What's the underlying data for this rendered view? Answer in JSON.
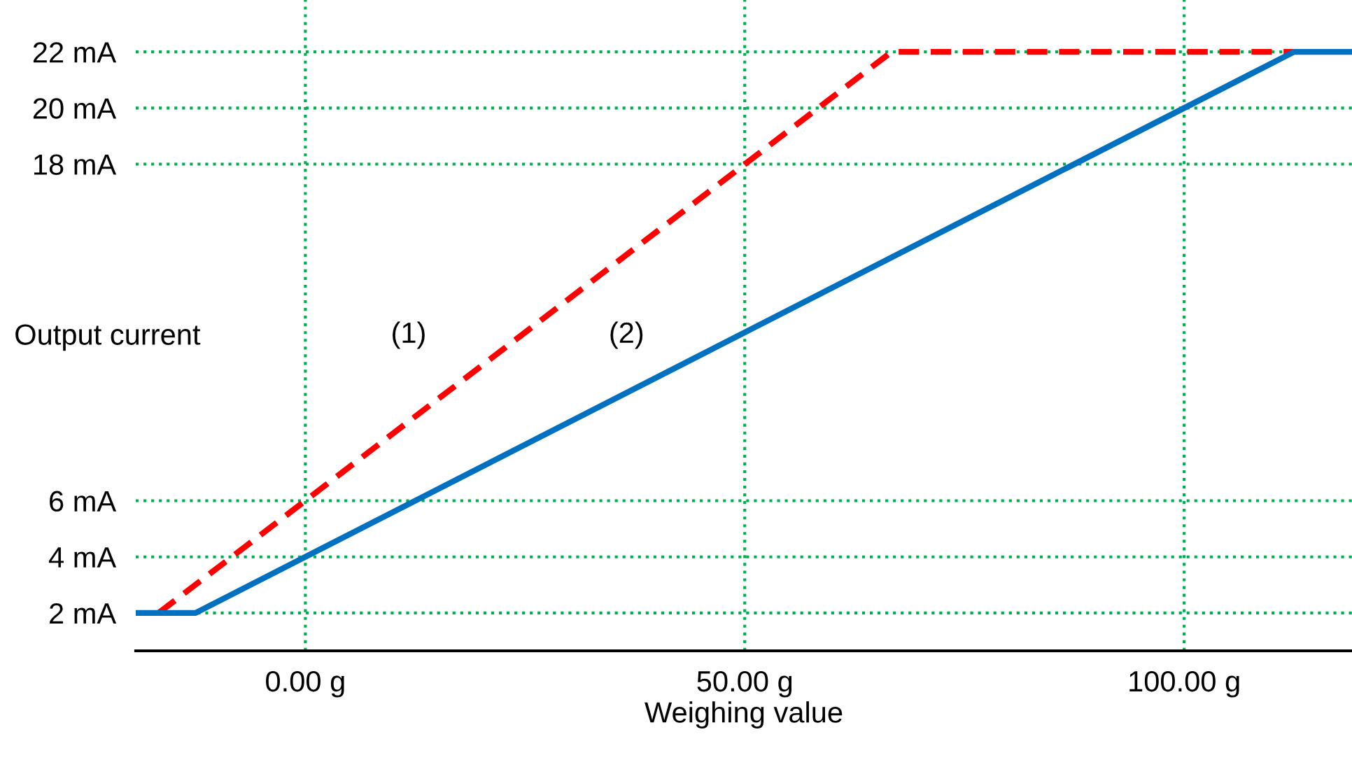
{
  "chart_data": {
    "type": "line",
    "xlabel": "Weighing value",
    "ylabel": "Output current",
    "series": [
      {
        "name": "(1)",
        "color": "#ff0000",
        "line_style": "dashed",
        "x": [
          -16.7,
          66.7,
          112.5
        ],
        "values": [
          2,
          22,
          22
        ]
      },
      {
        "name": "(2)",
        "color": "#0070c0",
        "line_style": "solid",
        "x": [
          -19.3,
          -12.5,
          112.5,
          119.1
        ],
        "values": [
          2,
          2,
          22,
          22
        ]
      }
    ],
    "xlim": [
      -19.3,
      119.1
    ],
    "ylim": [
      0.65,
      23.85
    ],
    "xticks": [
      {
        "value": 0,
        "label": "0.00 g"
      },
      {
        "value": 50,
        "label": "50.00 g"
      },
      {
        "value": 100,
        "label": "100.00 g"
      }
    ],
    "yticks": [
      {
        "value": 2,
        "label": "2 mA"
      },
      {
        "value": 4,
        "label": "4 mA"
      },
      {
        "value": 6,
        "label": "6 mA"
      },
      {
        "value": 18,
        "label": "18 mA"
      },
      {
        "value": 20,
        "label": "20 mA"
      },
      {
        "value": 22,
        "label": "22 mA"
      }
    ],
    "grid": true,
    "marker": "none"
  }
}
